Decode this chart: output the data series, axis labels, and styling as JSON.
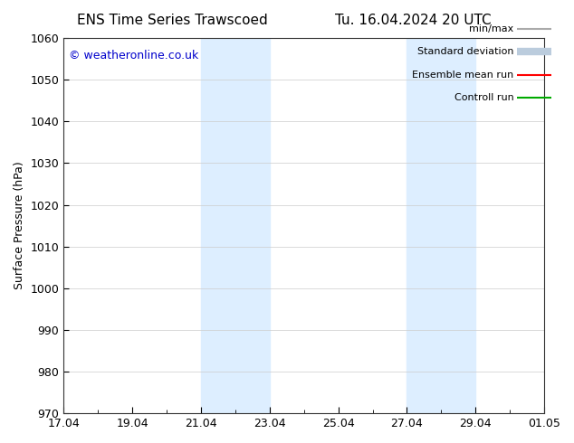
{
  "title_left": "ENS Time Series Trawscoed",
  "title_right": "Tu. 16.04.2024 20 UTC",
  "ylabel": "Surface Pressure (hPa)",
  "watermark": "© weatheronline.co.uk",
  "ylim": [
    970,
    1060
  ],
  "yticks": [
    970,
    980,
    990,
    1000,
    1010,
    1020,
    1030,
    1040,
    1050,
    1060
  ],
  "xtick_labels": [
    "17.04",
    "19.04",
    "21.04",
    "23.04",
    "25.04",
    "27.04",
    "29.04",
    "01.05"
  ],
  "xtick_positions": [
    0,
    2,
    4,
    6,
    8,
    10,
    12,
    14
  ],
  "shaded_regions": [
    {
      "start": 4,
      "end": 6
    },
    {
      "start": 10,
      "end": 12
    }
  ],
  "shaded_color": "#ddeeff",
  "background_color": "#ffffff",
  "legend_items": [
    {
      "label": "min/max",
      "color": "#aaaaaa",
      "lw": 1.5
    },
    {
      "label": "Standard deviation",
      "color": "#bbccdd",
      "lw": 6
    },
    {
      "label": "Ensemble mean run",
      "color": "#ff0000",
      "lw": 1.5
    },
    {
      "label": "Controll run",
      "color": "#00aa00",
      "lw": 1.5
    }
  ],
  "grid_color": "#cccccc",
  "tick_label_fontsize": 9,
  "axis_label_fontsize": 9,
  "title_fontsize": 11,
  "watermark_color": "#0000cc",
  "watermark_fontsize": 9
}
